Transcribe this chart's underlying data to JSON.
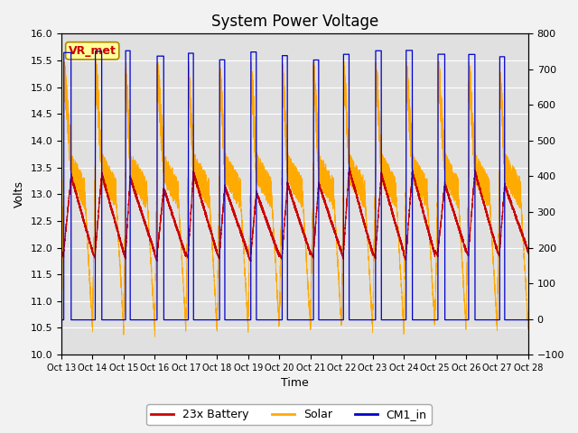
{
  "title": "System Power Voltage",
  "xlabel": "Time",
  "ylabel_left": "Volts",
  "ylabel_right": "",
  "ylim_left": [
    10.0,
    16.0
  ],
  "ylim_right": [
    -100,
    800
  ],
  "yticks_left": [
    10.0,
    10.5,
    11.0,
    11.5,
    12.0,
    12.5,
    13.0,
    13.5,
    14.0,
    14.5,
    15.0,
    15.5,
    16.0
  ],
  "yticks_right": [
    -100,
    0,
    100,
    200,
    300,
    400,
    500,
    600,
    700,
    800
  ],
  "xtick_labels": [
    "Oct 13",
    "Oct 14",
    "Oct 15",
    "Oct 16",
    "Oct 17",
    "Oct 18",
    "Oct 19",
    "Oct 20",
    "Oct 21",
    "Oct 22",
    "Oct 23",
    "Oct 24",
    "Oct 25",
    "Oct 26",
    "Oct 27",
    "Oct 28"
  ],
  "n_days": 15,
  "battery_color": "#cc0000",
  "solar_color": "#ffaa00",
  "cm1_color": "#0000cc",
  "background_color": "#e0e0e0",
  "grid_color": "#ffffff",
  "annotation_text": "VR_met",
  "annotation_bg": "#ffff99",
  "annotation_border": "#aa8800",
  "annotation_text_color": "#cc0000",
  "title_fontsize": 12,
  "label_fontsize": 9,
  "tick_fontsize": 8,
  "legend_fontsize": 9,
  "fig_bg": "#f2f2f2"
}
